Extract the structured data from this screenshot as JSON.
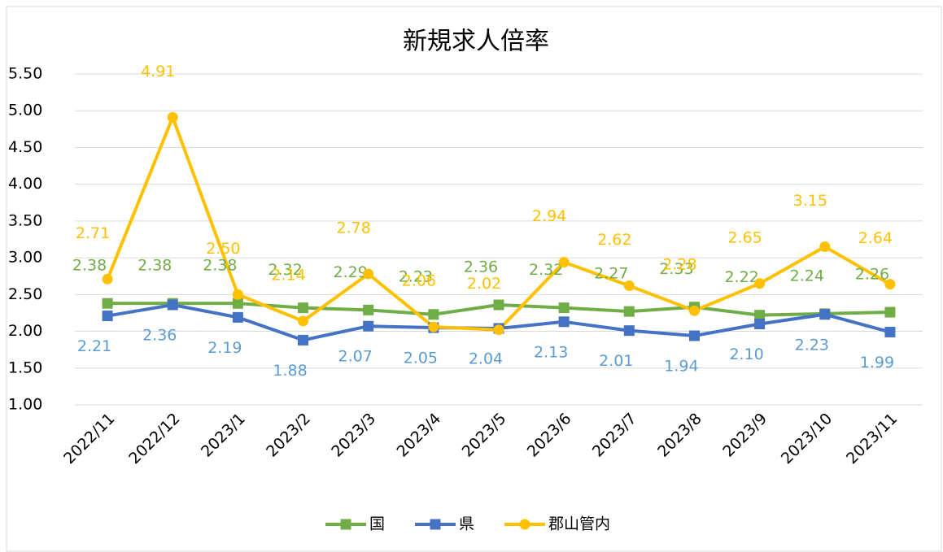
{
  "chart_data": {
    "type": "line",
    "title": "新規求人倍率",
    "categories": [
      "2022/11",
      "2022/12",
      "2023/1",
      "2023/2",
      "2023/3",
      "2023/4",
      "2023/5",
      "2023/6",
      "2023/7",
      "2023/8",
      "2023/9",
      "2023/10",
      "2023/11"
    ],
    "series": [
      {
        "name": "国",
        "color": "#70ad47",
        "marker": "square",
        "values": [
          2.38,
          2.38,
          2.38,
          2.32,
          2.29,
          2.23,
          2.36,
          2.32,
          2.27,
          2.33,
          2.22,
          2.24,
          2.26
        ],
        "value_labels": [
          "2.38",
          "2.38",
          "2.38",
          "2.32",
          "2.29",
          "2.23",
          "2.36",
          "2.32",
          "2.27",
          "2.33",
          "2.22",
          "2.24",
          "2.26"
        ]
      },
      {
        "name": "県",
        "color": "#4472c4",
        "marker": "square",
        "values": [
          2.21,
          2.36,
          2.19,
          1.88,
          2.07,
          2.05,
          2.04,
          2.13,
          2.01,
          1.94,
          2.1,
          2.23,
          1.99
        ],
        "value_labels": [
          "2.21",
          "2.36",
          "2.19",
          "1.88",
          "2.07",
          "2.05",
          "2.04",
          "2.13",
          "2.01",
          "1.94",
          "2.10",
          "2.23",
          "1.99"
        ]
      },
      {
        "name": "郡山管内",
        "color": "#ffc000",
        "marker": "circle",
        "values": [
          2.71,
          4.91,
          2.5,
          2.14,
          2.78,
          2.06,
          2.02,
          2.94,
          2.62,
          2.28,
          2.65,
          3.15,
          2.64
        ],
        "value_labels": [
          "2.71",
          "4.91",
          "2.50",
          "2.14",
          "2.78",
          "2.06",
          "2.02",
          "2.94",
          "2.62",
          "2.28",
          "2.65",
          "3.15",
          "2.64"
        ]
      }
    ],
    "ylim": [
      1,
      5.5
    ],
    "yticks": [
      {
        "value": 1,
        "label": "1.00"
      },
      {
        "value": 1.5,
        "label": "1.50"
      },
      {
        "value": 2,
        "label": "2.00"
      },
      {
        "value": 2.5,
        "label": "2.50"
      },
      {
        "value": 3,
        "label": "3.00"
      },
      {
        "value": 3.5,
        "label": "3.50"
      },
      {
        "value": 4,
        "label": "4.00"
      },
      {
        "value": 4.5,
        "label": "4.50"
      },
      {
        "value": 5,
        "label": "5.00"
      },
      {
        "value": 5.5,
        "label": "5.50"
      }
    ],
    "grid": true,
    "legend": "bottom"
  }
}
